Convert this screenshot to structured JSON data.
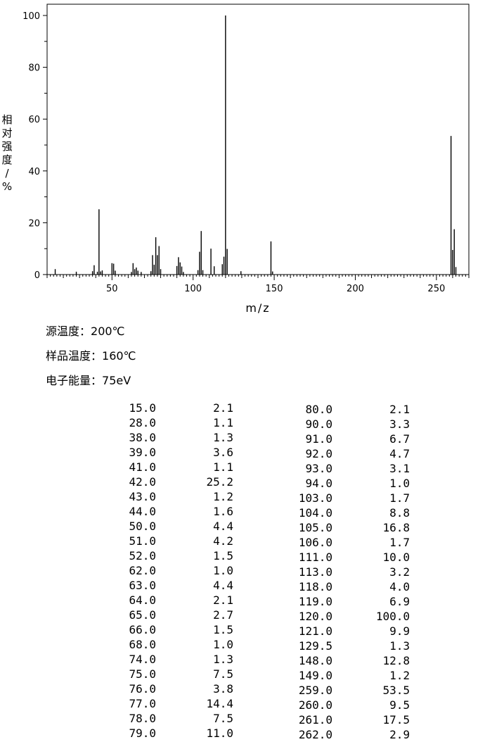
{
  "chart_data": {
    "type": "bar",
    "xlabel": "m/z",
    "ylabel": "相对强度/%",
    "xlim": [
      10,
      270
    ],
    "ylim": [
      0,
      100
    ],
    "x_ticks": [
      50,
      100,
      150,
      200,
      250
    ],
    "y_ticks": [
      0,
      20,
      40,
      60,
      80,
      100
    ],
    "grid": false,
    "x": [
      15,
      28,
      38,
      39,
      41,
      42,
      43,
      44,
      50,
      51,
      52,
      62,
      63,
      64,
      65,
      66,
      68,
      74,
      75,
      76,
      77,
      78,
      79,
      80,
      90,
      91,
      92,
      93,
      94,
      103,
      104,
      105,
      106,
      111,
      113,
      118,
      119,
      120,
      121,
      129.5,
      148,
      149,
      259,
      260,
      261,
      262
    ],
    "values": [
      2.1,
      1.1,
      1.3,
      3.6,
      1.1,
      25.2,
      1.2,
      1.6,
      4.4,
      4.2,
      1.5,
      1.0,
      4.4,
      2.1,
      2.7,
      1.5,
      1.0,
      1.3,
      7.5,
      3.8,
      14.4,
      7.5,
      11.0,
      2.1,
      3.3,
      6.7,
      4.7,
      3.1,
      1.0,
      1.7,
      8.8,
      16.8,
      1.7,
      10.0,
      3.2,
      4.0,
      6.9,
      100.0,
      9.9,
      1.3,
      12.8,
      1.2,
      53.5,
      9.5,
      17.5,
      2.9
    ]
  },
  "conditions": [
    {
      "label": "源温度：",
      "value": "200℃"
    },
    {
      "label": "样品温度：",
      "value": "160℃"
    },
    {
      "label": "电子能量：",
      "value": "75eV"
    }
  ],
  "peak_table": {
    "left": [
      {
        "mz": "15.0",
        "abundance": "2.1"
      },
      {
        "mz": "28.0",
        "abundance": "1.1"
      },
      {
        "mz": "38.0",
        "abundance": "1.3"
      },
      {
        "mz": "39.0",
        "abundance": "3.6"
      },
      {
        "mz": "41.0",
        "abundance": "1.1"
      },
      {
        "mz": "42.0",
        "abundance": "25.2"
      },
      {
        "mz": "43.0",
        "abundance": "1.2"
      },
      {
        "mz": "44.0",
        "abundance": "1.6"
      },
      {
        "mz": "50.0",
        "abundance": "4.4"
      },
      {
        "mz": "51.0",
        "abundance": "4.2"
      },
      {
        "mz": "52.0",
        "abundance": "1.5"
      },
      {
        "mz": "62.0",
        "abundance": "1.0"
      },
      {
        "mz": "63.0",
        "abundance": "4.4"
      },
      {
        "mz": "64.0",
        "abundance": "2.1"
      },
      {
        "mz": "65.0",
        "abundance": "2.7"
      },
      {
        "mz": "66.0",
        "abundance": "1.5"
      },
      {
        "mz": "68.0",
        "abundance": "1.0"
      },
      {
        "mz": "74.0",
        "abundance": "1.3"
      },
      {
        "mz": "75.0",
        "abundance": "7.5"
      },
      {
        "mz": "76.0",
        "abundance": "3.8"
      },
      {
        "mz": "77.0",
        "abundance": "14.4"
      },
      {
        "mz": "78.0",
        "abundance": "7.5"
      },
      {
        "mz": "79.0",
        "abundance": "11.0"
      }
    ],
    "right": [
      {
        "mz": "80.0",
        "abundance": "2.1"
      },
      {
        "mz": "90.0",
        "abundance": "3.3"
      },
      {
        "mz": "91.0",
        "abundance": "6.7"
      },
      {
        "mz": "92.0",
        "abundance": "4.7"
      },
      {
        "mz": "93.0",
        "abundance": "3.1"
      },
      {
        "mz": "94.0",
        "abundance": "1.0"
      },
      {
        "mz": "103.0",
        "abundance": "1.7"
      },
      {
        "mz": "104.0",
        "abundance": "8.8"
      },
      {
        "mz": "105.0",
        "abundance": "16.8"
      },
      {
        "mz": "106.0",
        "abundance": "1.7"
      },
      {
        "mz": "111.0",
        "abundance": "10.0"
      },
      {
        "mz": "113.0",
        "abundance": "3.2"
      },
      {
        "mz": "118.0",
        "abundance": "4.0"
      },
      {
        "mz": "119.0",
        "abundance": "6.9"
      },
      {
        "mz": "120.0",
        "abundance": "100.0"
      },
      {
        "mz": "121.0",
        "abundance": "9.9"
      },
      {
        "mz": "129.5",
        "abundance": "1.3"
      },
      {
        "mz": "148.0",
        "abundance": "12.8"
      },
      {
        "mz": "149.0",
        "abundance": "1.2"
      },
      {
        "mz": "259.0",
        "abundance": "53.5"
      },
      {
        "mz": "260.0",
        "abundance": "9.5"
      },
      {
        "mz": "261.0",
        "abundance": "17.5"
      },
      {
        "mz": "262.0",
        "abundance": "2.9"
      }
    ]
  }
}
